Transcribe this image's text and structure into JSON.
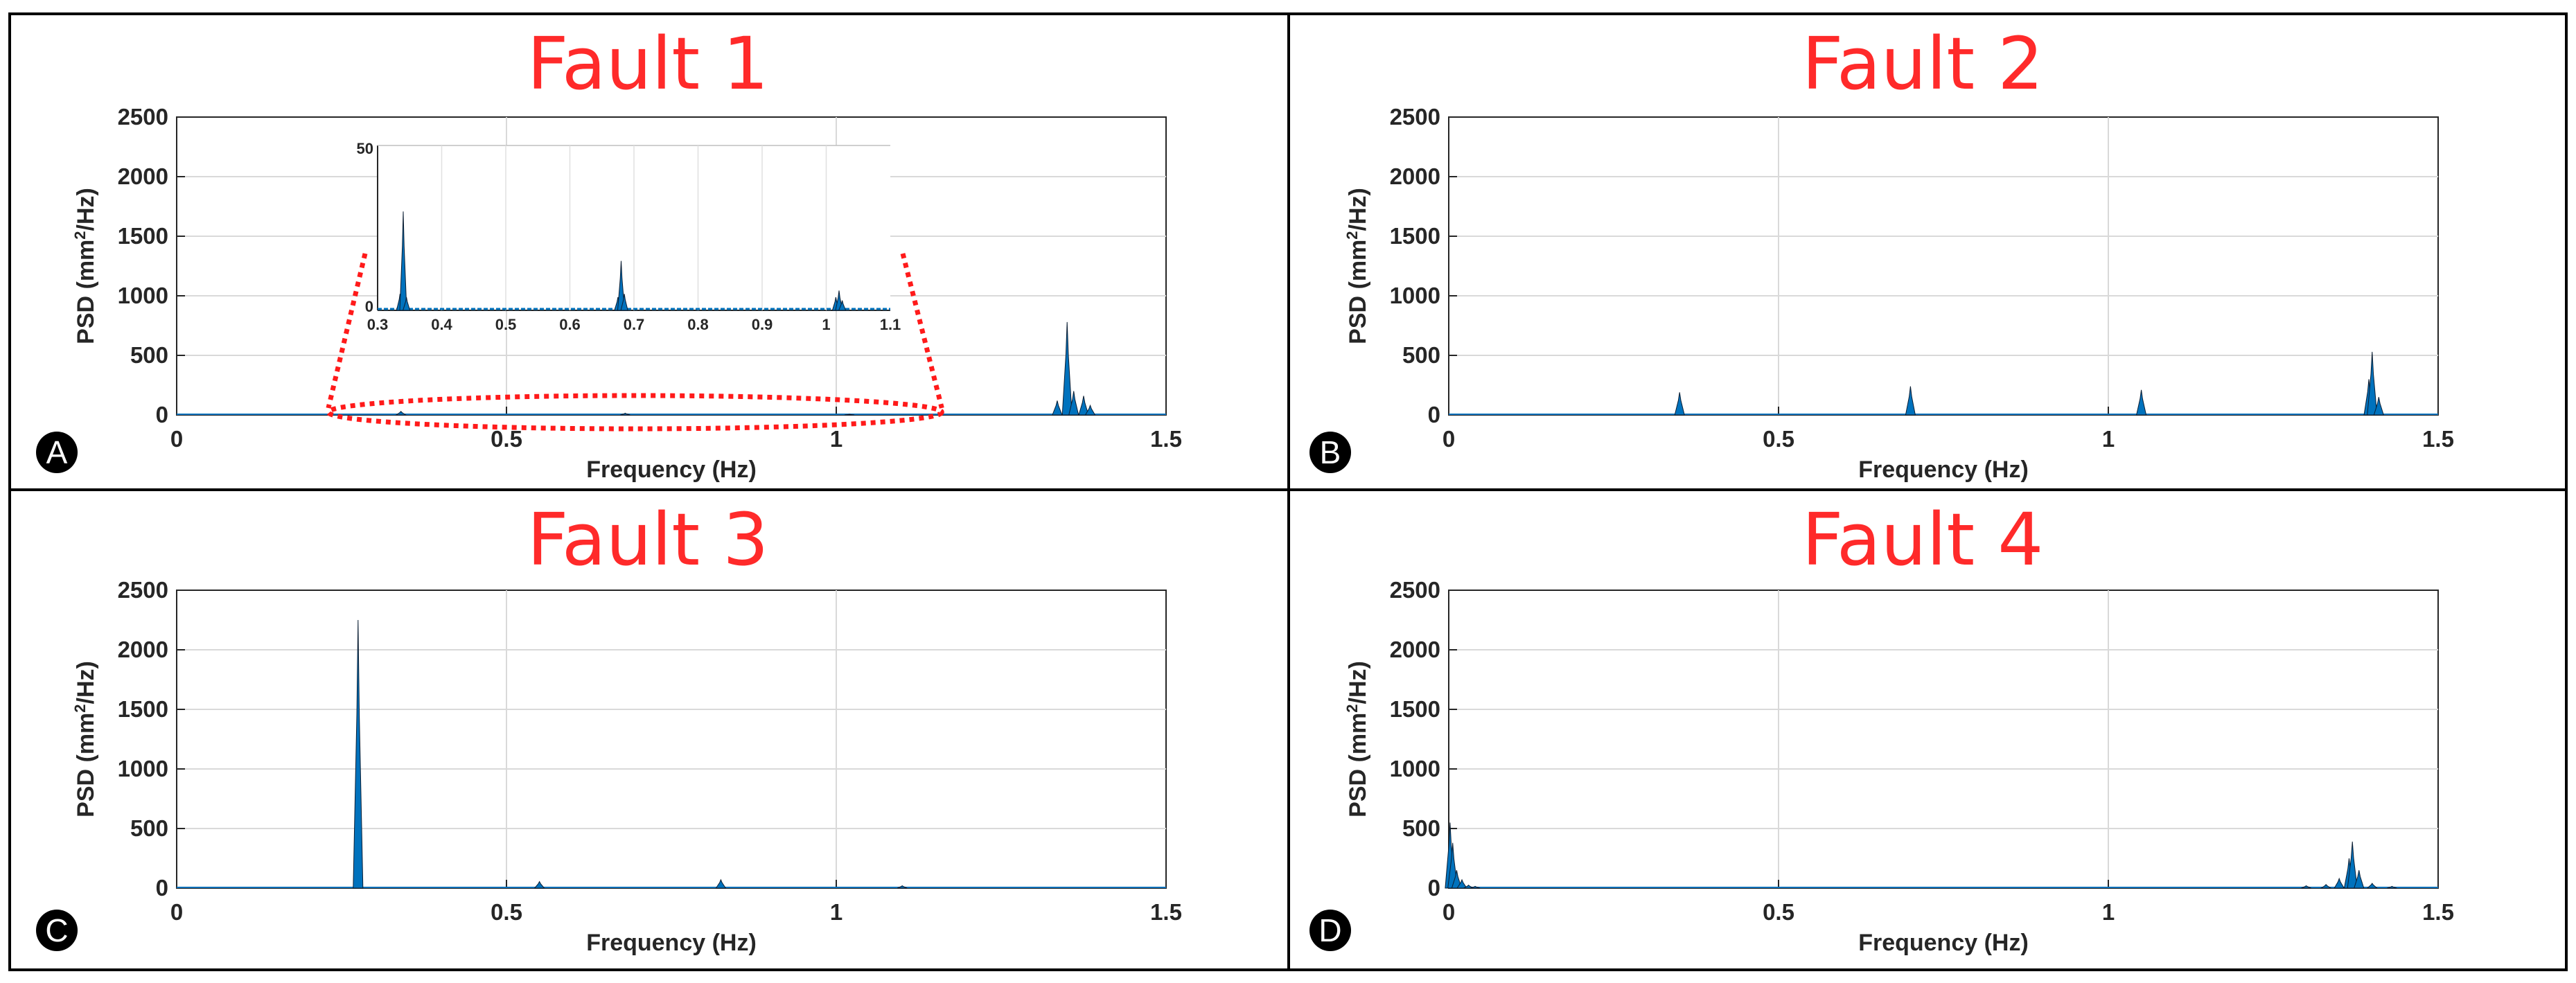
{
  "chart_data": [
    {
      "type": "area",
      "panel": "A",
      "title": "Fault 1",
      "xlabel": "Frequency (Hz)",
      "ylabel": "PSD (mm²/Hz)",
      "xlim": [
        0,
        1.5
      ],
      "ylim": [
        0,
        2500
      ],
      "xticks": [
        0,
        0.5,
        1,
        1.5
      ],
      "xtick_labels": [
        "0",
        "0.5",
        "1",
        "1.5"
      ],
      "yticks": [
        0,
        500,
        1000,
        1500,
        2000,
        2500
      ],
      "ytick_labels": [
        "0",
        "500",
        "1000",
        "1500",
        "2000",
        "2500"
      ],
      "grid": true,
      "color": "#0072bd",
      "peaks": [
        {
          "x": 0.34,
          "y": 30
        },
        {
          "x": 0.68,
          "y": 15
        },
        {
          "x": 1.02,
          "y": 6
        },
        {
          "x": 1.335,
          "y": 120
        },
        {
          "x": 1.35,
          "y": 780
        },
        {
          "x": 1.36,
          "y": 200
        },
        {
          "x": 1.375,
          "y": 160
        },
        {
          "x": 1.385,
          "y": 80
        }
      ],
      "inset": {
        "xlim": [
          0.3,
          1.1
        ],
        "ylim": [
          0,
          50
        ],
        "xticks": [
          0.3,
          0.4,
          0.5,
          0.6,
          0.7,
          0.8,
          0.9,
          1,
          1.1
        ],
        "xtick_labels": [
          "0.3",
          "0.4",
          "0.5",
          "0.6",
          "0.7",
          "0.8",
          "0.9",
          "1",
          "1.1"
        ],
        "yticks": [
          0,
          50
        ],
        "ytick_labels": [
          "0",
          "50"
        ],
        "peaks": [
          {
            "x": 0.335,
            "y": 5
          },
          {
            "x": 0.34,
            "y": 30
          },
          {
            "x": 0.345,
            "y": 4
          },
          {
            "x": 0.675,
            "y": 4
          },
          {
            "x": 0.68,
            "y": 15
          },
          {
            "x": 0.685,
            "y": 5
          },
          {
            "x": 1.015,
            "y": 4
          },
          {
            "x": 1.02,
            "y": 6
          },
          {
            "x": 1.025,
            "y": 3
          }
        ]
      }
    },
    {
      "type": "area",
      "panel": "B",
      "title": "Fault 2",
      "xlabel": "Frequency (Hz)",
      "ylabel": "PSD (mm²/Hz)",
      "xlim": [
        0,
        1.5
      ],
      "ylim": [
        0,
        2500
      ],
      "xticks": [
        0,
        0.5,
        1,
        1.5
      ],
      "xtick_labels": [
        "0",
        "0.5",
        "1",
        "1.5"
      ],
      "yticks": [
        0,
        500,
        1000,
        1500,
        2000,
        2500
      ],
      "ytick_labels": [
        "0",
        "500",
        "1000",
        "1500",
        "2000",
        "2500"
      ],
      "grid": true,
      "color": "#0072bd",
      "peaks": [
        {
          "x": 0.35,
          "y": 190
        },
        {
          "x": 0.7,
          "y": 240
        },
        {
          "x": 1.05,
          "y": 210
        },
        {
          "x": 1.395,
          "y": 300
        },
        {
          "x": 1.4,
          "y": 530
        },
        {
          "x": 1.41,
          "y": 150
        }
      ]
    },
    {
      "type": "area",
      "panel": "C",
      "title": "Fault 3",
      "xlabel": "Frequency (Hz)",
      "ylabel": "PSD (mm²/Hz)",
      "xlim": [
        0,
        1.5
      ],
      "ylim": [
        0,
        2500
      ],
      "xticks": [
        0,
        0.5,
        1,
        1.5
      ],
      "xtick_labels": [
        "0",
        "0.5",
        "1",
        "1.5"
      ],
      "yticks": [
        0,
        500,
        1000,
        1500,
        2000,
        2500
      ],
      "ytick_labels": [
        "0",
        "500",
        "1000",
        "1500",
        "2000",
        "2500"
      ],
      "grid": true,
      "color": "#0072bd",
      "peaks": [
        {
          "x": 0.275,
          "y": 2250
        },
        {
          "x": 0.55,
          "y": 55
        },
        {
          "x": 0.825,
          "y": 70
        },
        {
          "x": 1.1,
          "y": 20
        }
      ]
    },
    {
      "type": "area",
      "panel": "D",
      "title": "Fault 4",
      "xlabel": "Frequency (Hz)",
      "ylabel": "PSD (mm²/Hz)",
      "xlim": [
        0,
        1.5
      ],
      "ylim": [
        0,
        2500
      ],
      "xticks": [
        0,
        0.5,
        1,
        1.5
      ],
      "xtick_labels": [
        "0",
        "0.5",
        "1",
        "1.5"
      ],
      "yticks": [
        0,
        500,
        1000,
        1500,
        2000,
        2500
      ],
      "ytick_labels": [
        "0",
        "500",
        "1000",
        "1500",
        "2000",
        "2500"
      ],
      "grid": true,
      "color": "#0072bd",
      "peaks": [
        {
          "x": 0.002,
          "y": 550
        },
        {
          "x": 0.006,
          "y": 380
        },
        {
          "x": 0.012,
          "y": 150
        },
        {
          "x": 0.02,
          "y": 70
        },
        {
          "x": 0.03,
          "y": 25
        },
        {
          "x": 0.04,
          "y": 15
        },
        {
          "x": 1.3,
          "y": 20
        },
        {
          "x": 1.33,
          "y": 30
        },
        {
          "x": 1.35,
          "y": 80
        },
        {
          "x": 1.365,
          "y": 250
        },
        {
          "x": 1.37,
          "y": 390
        },
        {
          "x": 1.38,
          "y": 150
        },
        {
          "x": 1.4,
          "y": 40
        },
        {
          "x": 1.43,
          "y": 15
        }
      ]
    }
  ]
}
